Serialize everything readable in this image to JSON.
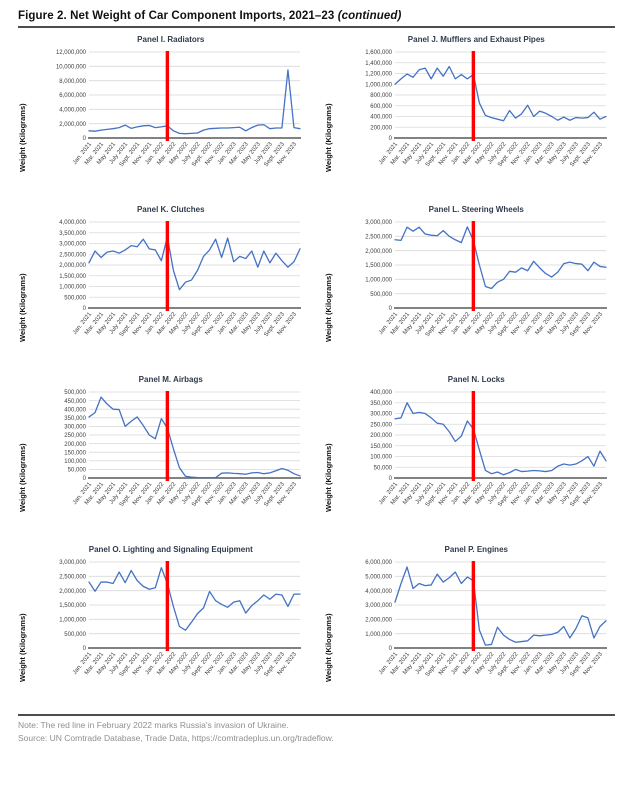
{
  "figure": {
    "title": "Figure 2. Net Weight of Car Component Imports, 2021–23 ",
    "title_suffix": "(continued)"
  },
  "axes": {
    "y_title": "Weight (Kilograms)",
    "x_tick_labels": [
      "Jan. 2021",
      "Mar. 2021",
      "May 2021",
      "July 2021",
      "Sept. 2021",
      "Nov. 2021",
      "Jan. 2022",
      "Mar. 2022",
      "May 2022",
      "July 2022",
      "Sept. 2022",
      "Nov. 2022",
      "Jan. 2023",
      "Mar. 2023",
      "May 2023",
      "July 2023",
      "Sept. 2023",
      "Nov. 2023"
    ]
  },
  "event_marker": {
    "index": 13,
    "color": "#ff0000"
  },
  "style": {
    "line_color": "#4472c4",
    "grid_color": "#d9d9d9",
    "axis_color": "#595959",
    "tick_color": "#3d3d3d",
    "title_color": "#2f3b4c"
  },
  "chart_data": [
    {
      "type": "line",
      "title": "Panel I. Radiators",
      "ylabel": "Weight (Kilograms)",
      "ylim": [
        0,
        12000000
      ],
      "ystep": 2000000,
      "values": [
        1000000,
        950000,
        1100000,
        1200000,
        1300000,
        1450000,
        1800000,
        1350000,
        1550000,
        1700000,
        1750000,
        1450000,
        1550000,
        1700000,
        1000000,
        650000,
        600000,
        650000,
        700000,
        1100000,
        1300000,
        1350000,
        1400000,
        1400000,
        1450000,
        1500000,
        1000000,
        1450000,
        1800000,
        1850000,
        1300000,
        1400000,
        1400000,
        9500000,
        1450000,
        1300000
      ]
    },
    {
      "type": "line",
      "title": "Panel J. Mufflers and Exhaust Pipes",
      "ylabel": "Weight (Kilograms)",
      "ylim": [
        0,
        1600000
      ],
      "ystep": 200000,
      "values": [
        1000000,
        1100000,
        1190000,
        1130000,
        1270000,
        1300000,
        1100000,
        1300000,
        1150000,
        1330000,
        1100000,
        1180000,
        1100000,
        1180000,
        650000,
        420000,
        380000,
        350000,
        320000,
        510000,
        370000,
        450000,
        610000,
        400000,
        500000,
        460000,
        400000,
        330000,
        390000,
        330000,
        380000,
        370000,
        380000,
        480000,
        350000,
        400000
      ]
    },
    {
      "type": "line",
      "title": "Panel K. Clutches",
      "ylabel": "Weight (Kilograms)",
      "ylim": [
        0,
        4000000
      ],
      "ystep": 500000,
      "values": [
        2100000,
        2650000,
        2350000,
        2600000,
        2650000,
        2550000,
        2700000,
        2900000,
        2850000,
        3200000,
        2750000,
        2700000,
        2200000,
        3300000,
        1750000,
        850000,
        1200000,
        1300000,
        1750000,
        2400000,
        2700000,
        3200000,
        2350000,
        3250000,
        2150000,
        2400000,
        2300000,
        2650000,
        1900000,
        2650000,
        2100000,
        2550000,
        2200000,
        1900000,
        2150000,
        2750000
      ]
    },
    {
      "type": "line",
      "title": "Panel L. Steering Wheels",
      "ylabel": "Weight (Kilograms)",
      "ylim": [
        0,
        3000000
      ],
      "ystep": 500000,
      "values": [
        2380000,
        2360000,
        2820000,
        2680000,
        2820000,
        2580000,
        2540000,
        2520000,
        2700000,
        2500000,
        2380000,
        2280000,
        2830000,
        2350000,
        1500000,
        750000,
        680000,
        900000,
        1000000,
        1280000,
        1250000,
        1400000,
        1300000,
        1630000,
        1400000,
        1200000,
        1080000,
        1250000,
        1550000,
        1600000,
        1550000,
        1530000,
        1300000,
        1600000,
        1450000,
        1420000
      ]
    },
    {
      "type": "line",
      "title": "Panel M. Airbags",
      "ylabel": "Weight (Kilograms)",
      "ylim": [
        0,
        500000
      ],
      "ystep": 50000,
      "values": [
        355000,
        380000,
        470000,
        430000,
        400000,
        398000,
        300000,
        330000,
        355000,
        305000,
        250000,
        228000,
        345000,
        290000,
        170000,
        60000,
        10000,
        5000,
        3000,
        2000,
        2000,
        2000,
        28000,
        30000,
        27000,
        25000,
        22000,
        30000,
        32000,
        25000,
        30000,
        42000,
        55000,
        45000,
        25000,
        12000
      ]
    },
    {
      "type": "line",
      "title": "Panel N. Locks",
      "ylabel": "Weight (Kilograms)",
      "ylim": [
        0,
        400000
      ],
      "ystep": 50000,
      "values": [
        275000,
        280000,
        350000,
        300000,
        305000,
        300000,
        280000,
        255000,
        250000,
        215000,
        170000,
        195000,
        265000,
        228000,
        130000,
        35000,
        20000,
        28000,
        15000,
        25000,
        40000,
        30000,
        32000,
        35000,
        33000,
        30000,
        35000,
        55000,
        65000,
        60000,
        65000,
        80000,
        100000,
        55000,
        125000,
        80000
      ]
    },
    {
      "type": "line",
      "title": "Panel O. Lighting and Signaling Equipment",
      "ylabel": "Weight (Kilograms)",
      "ylim": [
        0,
        3000000
      ],
      "ystep": 500000,
      "values": [
        2300000,
        1980000,
        2300000,
        2300000,
        2250000,
        2650000,
        2280000,
        2700000,
        2350000,
        2150000,
        2050000,
        2100000,
        2800000,
        2250000,
        1450000,
        750000,
        620000,
        900000,
        1200000,
        1400000,
        1970000,
        1650000,
        1520000,
        1420000,
        1600000,
        1650000,
        1220000,
        1480000,
        1650000,
        1850000,
        1700000,
        1880000,
        1850000,
        1450000,
        1880000,
        1880000
      ]
    },
    {
      "type": "line",
      "title": "Panel P. Engines",
      "ylabel": "Weight (Kilograms)",
      "ylim": [
        0,
        6000000
      ],
      "ystep": 1000000,
      "values": [
        3200000,
        4500000,
        5650000,
        4150000,
        4500000,
        4350000,
        4400000,
        5150000,
        4600000,
        4900000,
        5300000,
        4500000,
        4950000,
        4700000,
        1250000,
        200000,
        250000,
        1450000,
        900000,
        600000,
        400000,
        450000,
        500000,
        900000,
        850000,
        900000,
        950000,
        1100000,
        1500000,
        700000,
        1350000,
        2250000,
        2100000,
        700000,
        1500000,
        1900000
      ]
    }
  ],
  "footer": {
    "note": "Note: The red line in February 2022 marks Russia's invasion of Ukraine.",
    "source": "Source: UN Comtrade Database, Trade Data, https://comtradeplus.un.org/tradeflow."
  }
}
